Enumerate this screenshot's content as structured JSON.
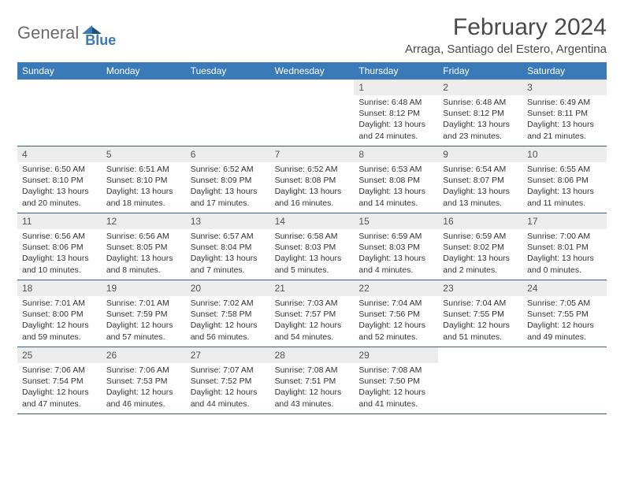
{
  "brand": {
    "word1": "General",
    "word2": "Blue"
  },
  "title": "February 2024",
  "location": "Arraga, Santiago del Estero, Argentina",
  "colors": {
    "header_bg": "#3a7ab8",
    "header_text": "#ffffff",
    "daynum_bg": "#ececec",
    "week_border": "#3a5a7a",
    "text": "#333333",
    "title_text": "#4a4a4a",
    "logo_gray": "#6b6b6b"
  },
  "dow": [
    "Sunday",
    "Monday",
    "Tuesday",
    "Wednesday",
    "Thursday",
    "Friday",
    "Saturday"
  ],
  "weeks": [
    [
      {
        "n": "",
        "sunrise": "",
        "sunset": "",
        "day1": "",
        "day2": ""
      },
      {
        "n": "",
        "sunrise": "",
        "sunset": "",
        "day1": "",
        "day2": ""
      },
      {
        "n": "",
        "sunrise": "",
        "sunset": "",
        "day1": "",
        "day2": ""
      },
      {
        "n": "",
        "sunrise": "",
        "sunset": "",
        "day1": "",
        "day2": ""
      },
      {
        "n": "1",
        "sunrise": "Sunrise: 6:48 AM",
        "sunset": "Sunset: 8:12 PM",
        "day1": "Daylight: 13 hours",
        "day2": "and 24 minutes."
      },
      {
        "n": "2",
        "sunrise": "Sunrise: 6:48 AM",
        "sunset": "Sunset: 8:12 PM",
        "day1": "Daylight: 13 hours",
        "day2": "and 23 minutes."
      },
      {
        "n": "3",
        "sunrise": "Sunrise: 6:49 AM",
        "sunset": "Sunset: 8:11 PM",
        "day1": "Daylight: 13 hours",
        "day2": "and 21 minutes."
      }
    ],
    [
      {
        "n": "4",
        "sunrise": "Sunrise: 6:50 AM",
        "sunset": "Sunset: 8:10 PM",
        "day1": "Daylight: 13 hours",
        "day2": "and 20 minutes."
      },
      {
        "n": "5",
        "sunrise": "Sunrise: 6:51 AM",
        "sunset": "Sunset: 8:10 PM",
        "day1": "Daylight: 13 hours",
        "day2": "and 18 minutes."
      },
      {
        "n": "6",
        "sunrise": "Sunrise: 6:52 AM",
        "sunset": "Sunset: 8:09 PM",
        "day1": "Daylight: 13 hours",
        "day2": "and 17 minutes."
      },
      {
        "n": "7",
        "sunrise": "Sunrise: 6:52 AM",
        "sunset": "Sunset: 8:08 PM",
        "day1": "Daylight: 13 hours",
        "day2": "and 16 minutes."
      },
      {
        "n": "8",
        "sunrise": "Sunrise: 6:53 AM",
        "sunset": "Sunset: 8:08 PM",
        "day1": "Daylight: 13 hours",
        "day2": "and 14 minutes."
      },
      {
        "n": "9",
        "sunrise": "Sunrise: 6:54 AM",
        "sunset": "Sunset: 8:07 PM",
        "day1": "Daylight: 13 hours",
        "day2": "and 13 minutes."
      },
      {
        "n": "10",
        "sunrise": "Sunrise: 6:55 AM",
        "sunset": "Sunset: 8:06 PM",
        "day1": "Daylight: 13 hours",
        "day2": "and 11 minutes."
      }
    ],
    [
      {
        "n": "11",
        "sunrise": "Sunrise: 6:56 AM",
        "sunset": "Sunset: 8:06 PM",
        "day1": "Daylight: 13 hours",
        "day2": "and 10 minutes."
      },
      {
        "n": "12",
        "sunrise": "Sunrise: 6:56 AM",
        "sunset": "Sunset: 8:05 PM",
        "day1": "Daylight: 13 hours",
        "day2": "and 8 minutes."
      },
      {
        "n": "13",
        "sunrise": "Sunrise: 6:57 AM",
        "sunset": "Sunset: 8:04 PM",
        "day1": "Daylight: 13 hours",
        "day2": "and 7 minutes."
      },
      {
        "n": "14",
        "sunrise": "Sunrise: 6:58 AM",
        "sunset": "Sunset: 8:03 PM",
        "day1": "Daylight: 13 hours",
        "day2": "and 5 minutes."
      },
      {
        "n": "15",
        "sunrise": "Sunrise: 6:59 AM",
        "sunset": "Sunset: 8:03 PM",
        "day1": "Daylight: 13 hours",
        "day2": "and 4 minutes."
      },
      {
        "n": "16",
        "sunrise": "Sunrise: 6:59 AM",
        "sunset": "Sunset: 8:02 PM",
        "day1": "Daylight: 13 hours",
        "day2": "and 2 minutes."
      },
      {
        "n": "17",
        "sunrise": "Sunrise: 7:00 AM",
        "sunset": "Sunset: 8:01 PM",
        "day1": "Daylight: 13 hours",
        "day2": "and 0 minutes."
      }
    ],
    [
      {
        "n": "18",
        "sunrise": "Sunrise: 7:01 AM",
        "sunset": "Sunset: 8:00 PM",
        "day1": "Daylight: 12 hours",
        "day2": "and 59 minutes."
      },
      {
        "n": "19",
        "sunrise": "Sunrise: 7:01 AM",
        "sunset": "Sunset: 7:59 PM",
        "day1": "Daylight: 12 hours",
        "day2": "and 57 minutes."
      },
      {
        "n": "20",
        "sunrise": "Sunrise: 7:02 AM",
        "sunset": "Sunset: 7:58 PM",
        "day1": "Daylight: 12 hours",
        "day2": "and 56 minutes."
      },
      {
        "n": "21",
        "sunrise": "Sunrise: 7:03 AM",
        "sunset": "Sunset: 7:57 PM",
        "day1": "Daylight: 12 hours",
        "day2": "and 54 minutes."
      },
      {
        "n": "22",
        "sunrise": "Sunrise: 7:04 AM",
        "sunset": "Sunset: 7:56 PM",
        "day1": "Daylight: 12 hours",
        "day2": "and 52 minutes."
      },
      {
        "n": "23",
        "sunrise": "Sunrise: 7:04 AM",
        "sunset": "Sunset: 7:55 PM",
        "day1": "Daylight: 12 hours",
        "day2": "and 51 minutes."
      },
      {
        "n": "24",
        "sunrise": "Sunrise: 7:05 AM",
        "sunset": "Sunset: 7:55 PM",
        "day1": "Daylight: 12 hours",
        "day2": "and 49 minutes."
      }
    ],
    [
      {
        "n": "25",
        "sunrise": "Sunrise: 7:06 AM",
        "sunset": "Sunset: 7:54 PM",
        "day1": "Daylight: 12 hours",
        "day2": "and 47 minutes."
      },
      {
        "n": "26",
        "sunrise": "Sunrise: 7:06 AM",
        "sunset": "Sunset: 7:53 PM",
        "day1": "Daylight: 12 hours",
        "day2": "and 46 minutes."
      },
      {
        "n": "27",
        "sunrise": "Sunrise: 7:07 AM",
        "sunset": "Sunset: 7:52 PM",
        "day1": "Daylight: 12 hours",
        "day2": "and 44 minutes."
      },
      {
        "n": "28",
        "sunrise": "Sunrise: 7:08 AM",
        "sunset": "Sunset: 7:51 PM",
        "day1": "Daylight: 12 hours",
        "day2": "and 43 minutes."
      },
      {
        "n": "29",
        "sunrise": "Sunrise: 7:08 AM",
        "sunset": "Sunset: 7:50 PM",
        "day1": "Daylight: 12 hours",
        "day2": "and 41 minutes."
      },
      {
        "n": "",
        "sunrise": "",
        "sunset": "",
        "day1": "",
        "day2": ""
      },
      {
        "n": "",
        "sunrise": "",
        "sunset": "",
        "day1": "",
        "day2": ""
      }
    ]
  ]
}
